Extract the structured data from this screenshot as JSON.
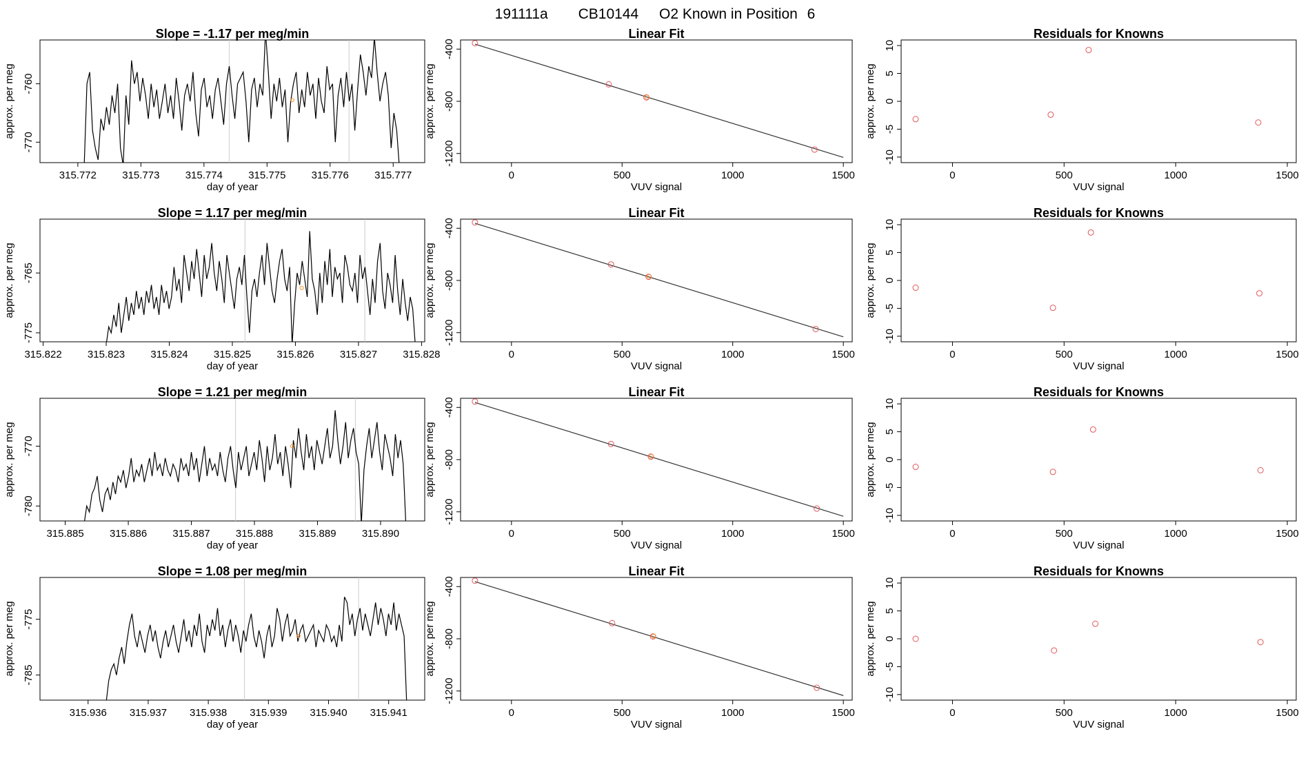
{
  "page_title": {
    "run_id": "191111a",
    "cylinder": "CB10144",
    "description": "O2 Known in Position",
    "position": "6"
  },
  "colors": {
    "line": "#000000",
    "fit_line": "#333333",
    "point": "#e15759",
    "highlight": "#f28e2b",
    "marker_line": "#cccccc"
  },
  "chart_data": [
    {
      "type": "line",
      "row": 1,
      "panel": "timeseries",
      "title": "Slope =  -1.17  per meg/min",
      "xlabel": "day of year",
      "ylabel": "approx. per meg",
      "xlim": [
        315.7714,
        315.7775
      ],
      "ylim": [
        -773.5,
        -752.5
      ],
      "x_ticks": [
        "315.772",
        "315.773",
        "315.774",
        "315.775",
        "315.776",
        "315.777"
      ],
      "x_tick_values": [
        315.772,
        315.773,
        315.774,
        315.775,
        315.776,
        315.777
      ],
      "y_ticks": [
        "-770",
        "-760"
      ],
      "y_tick_values": [
        -770,
        -760
      ],
      "vlines": [
        315.7744,
        315.7763
      ],
      "highlight_point": {
        "x": 315.7754,
        "y": -762.8
      },
      "x_start": 315.7721,
      "x_end": 315.7771,
      "values": [
        -774.5,
        -760,
        -758,
        -768,
        -771,
        -773,
        -766,
        -768,
        -764,
        -767,
        -762,
        -765,
        -760,
        -771,
        -774,
        -762,
        -767,
        -756,
        -760,
        -758,
        -763,
        -759,
        -762,
        -766,
        -760,
        -764,
        -761,
        -766,
        -763,
        -760,
        -765,
        -762,
        -766,
        -759,
        -763,
        -768,
        -762,
        -760,
        -763,
        -758,
        -765,
        -769,
        -761,
        -759,
        -764,
        -762,
        -766,
        -761,
        -759,
        -763,
        -767,
        -760,
        -757,
        -762,
        -766,
        -760,
        -759,
        -758,
        -763,
        -770,
        -761,
        -759,
        -764,
        -760,
        -762,
        -751,
        -758,
        -766,
        -760,
        -763,
        -759,
        -764,
        -761,
        -770,
        -763,
        -760,
        -758,
        -765,
        -761,
        -764,
        -758,
        -762,
        -760,
        -766,
        -759,
        -763,
        -765,
        -757,
        -761,
        -760,
        -770,
        -762,
        -759,
        -764,
        -758,
        -763,
        -760,
        -768,
        -761,
        -755,
        -758,
        -762,
        -757,
        -759,
        -752,
        -758,
        -763,
        -760,
        -758,
        -762,
        -771,
        -765,
        -768,
        -774.5
      ]
    },
    {
      "type": "scatter",
      "row": 1,
      "panel": "fit",
      "title": "Linear Fit",
      "xlabel": "VUV signal",
      "ylabel": "approx. per meg",
      "xlim": [
        -230,
        1540
      ],
      "ylim": [
        -1270,
        -330
      ],
      "x_ticks": [
        "0",
        "500",
        "1000",
        "1500"
      ],
      "x_tick_values": [
        0,
        500,
        1000,
        1500
      ],
      "y_ticks": [
        "-1200",
        "-800",
        "-400"
      ],
      "y_tick_values": [
        -1200,
        -800,
        -400
      ],
      "points": [
        [
          -165,
          -355
        ],
        [
          440,
          -670
        ],
        [
          610,
          -770
        ],
        [
          1370,
          -1170
        ]
      ],
      "highlight_point": [
        612,
        -768
      ],
      "fit_line": [
        [
          -165,
          -362
        ],
        [
          1500,
          -1230
        ]
      ]
    },
    {
      "type": "scatter",
      "row": 1,
      "panel": "residuals",
      "title": "Residuals for Knowns",
      "xlabel": "VUV signal",
      "ylabel": "approx. per meg",
      "xlim": [
        -230,
        1540
      ],
      "ylim": [
        -11,
        11
      ],
      "x_ticks": [
        "0",
        "500",
        "1000",
        "1500"
      ],
      "x_tick_values": [
        0,
        500,
        1000,
        1500
      ],
      "y_ticks": [
        "-10",
        "-5",
        "0",
        "5",
        "10"
      ],
      "y_tick_values": [
        -10,
        -5,
        0,
        5,
        10
      ],
      "points": [
        [
          -165,
          -3.2
        ],
        [
          440,
          -2.4
        ],
        [
          610,
          9.2
        ],
        [
          1370,
          -3.8
        ]
      ]
    },
    {
      "type": "line",
      "row": 2,
      "panel": "timeseries",
      "title": "Slope =  1.17  per meg/min",
      "xlabel": "day of year",
      "ylabel": "approx. per meg",
      "xlim": [
        315.82195,
        315.82805
      ],
      "ylim": [
        -776.5,
        -756
      ],
      "x_ticks": [
        "315.822",
        "315.823",
        "315.824",
        "315.825",
        "315.826",
        "315.827",
        "315.828"
      ],
      "x_tick_values": [
        315.822,
        315.823,
        315.824,
        315.825,
        315.826,
        315.827,
        315.828
      ],
      "y_ticks": [
        "-775",
        "-765"
      ],
      "y_tick_values": [
        -775,
        -765
      ],
      "vlines": [
        315.8252,
        315.8271
      ],
      "highlight_point": {
        "x": 315.8261,
        "y": -767.5
      },
      "x_start": 315.823,
      "x_end": 315.8279,
      "values": [
        -777,
        -774,
        -775,
        -772,
        -774,
        -770,
        -775,
        -772,
        -769,
        -773,
        -770,
        -772,
        -768,
        -771,
        -769,
        -772,
        -768,
        -770,
        -767,
        -771,
        -769,
        -772,
        -767,
        -770,
        -768,
        -771,
        -769,
        -764,
        -768,
        -766,
        -770,
        -762,
        -765,
        -768,
        -763,
        -766,
        -761,
        -765,
        -769,
        -762,
        -766,
        -764,
        -760,
        -765,
        -768,
        -763,
        -766,
        -770,
        -762,
        -765,
        -768,
        -771,
        -766,
        -764,
        -767,
        -762,
        -769,
        -775,
        -768,
        -766,
        -769,
        -765,
        -762,
        -767,
        -760,
        -764,
        -768,
        -770,
        -766,
        -763,
        -761,
        -766,
        -768,
        -764,
        -777,
        -770,
        -765,
        -767,
        -763,
        -766,
        -769,
        -758,
        -766,
        -768,
        -772,
        -765,
        -770,
        -763,
        -767,
        -761,
        -769,
        -764,
        -766,
        -765,
        -770,
        -762,
        -764,
        -767,
        -768,
        -765,
        -770,
        -762,
        -766,
        -764,
        -768,
        -772,
        -766,
        -770,
        -763,
        -760,
        -768,
        -771,
        -765,
        -767,
        -770,
        -762,
        -768,
        -772,
        -766,
        -770,
        -773,
        -769,
        -771,
        -777
      ]
    },
    {
      "type": "scatter",
      "row": 2,
      "panel": "fit",
      "title": "Linear Fit",
      "xlabel": "VUV signal",
      "ylabel": "approx. per meg",
      "xlim": [
        -230,
        1540
      ],
      "ylim": [
        -1270,
        -330
      ],
      "x_ticks": [
        "0",
        "500",
        "1000",
        "1500"
      ],
      "x_tick_values": [
        0,
        500,
        1000,
        1500
      ],
      "y_ticks": [
        "-1200",
        "-800",
        "-400"
      ],
      "y_tick_values": [
        -1200,
        -800,
        -400
      ],
      "points": [
        [
          -165,
          -355
        ],
        [
          450,
          -677
        ],
        [
          620,
          -772
        ],
        [
          1375,
          -1172
        ]
      ],
      "highlight_point": [
        622,
        -770
      ],
      "fit_line": [
        [
          -165,
          -362
        ],
        [
          1500,
          -1232
        ]
      ]
    },
    {
      "type": "scatter",
      "row": 2,
      "panel": "residuals",
      "title": "Residuals for Knowns",
      "xlabel": "VUV signal",
      "ylabel": "approx. per meg",
      "xlim": [
        -230,
        1540
      ],
      "ylim": [
        -11,
        11
      ],
      "x_ticks": [
        "0",
        "500",
        "1000",
        "1500"
      ],
      "x_tick_values": [
        0,
        500,
        1000,
        1500
      ],
      "y_ticks": [
        "-10",
        "-5",
        "0",
        "5",
        "10"
      ],
      "y_tick_values": [
        -10,
        -5,
        0,
        5,
        10
      ],
      "points": [
        [
          -165,
          -1.3
        ],
        [
          450,
          -4.9
        ],
        [
          620,
          8.6
        ],
        [
          1375,
          -2.3
        ]
      ]
    },
    {
      "type": "line",
      "row": 3,
      "panel": "timeseries",
      "title": "Slope =  1.21  per meg/min",
      "xlabel": "day of year",
      "ylabel": "approx. per meg",
      "xlim": [
        315.8846,
        315.8907
      ],
      "ylim": [
        -782.5,
        -762
      ],
      "x_ticks": [
        "315.885",
        "315.886",
        "315.887",
        "315.888",
        "315.889",
        "315.890"
      ],
      "x_tick_values": [
        315.885,
        315.886,
        315.887,
        315.888,
        315.889,
        315.89
      ],
      "y_ticks": [
        "-780",
        "-770"
      ],
      "y_tick_values": [
        -780,
        -770
      ],
      "vlines": [
        315.8877,
        315.8896
      ],
      "highlight_point": {
        "x": 315.8886,
        "y": -770
      },
      "x_start": 315.8853,
      "x_end": 315.8904,
      "values": [
        -783,
        -780,
        -781,
        -778,
        -777,
        -775,
        -779,
        -781,
        -778,
        -777,
        -779,
        -776,
        -778,
        -775,
        -776,
        -774,
        -777,
        -775,
        -772,
        -776,
        -774,
        -775,
        -773,
        -776,
        -774,
        -772,
        -775,
        -771,
        -774,
        -773,
        -775,
        -772,
        -774,
        -775,
        -773,
        -774,
        -776,
        -772,
        -774,
        -773,
        -775,
        -771,
        -774,
        -772,
        -776,
        -773,
        -770,
        -775,
        -772,
        -774,
        -773,
        -775,
        -771,
        -774,
        -776,
        -772,
        -770,
        -774,
        -777,
        -771,
        -774,
        -772,
        -770,
        -775,
        -773,
        -771,
        -774,
        -769,
        -772,
        -776,
        -770,
        -774,
        -772,
        -768,
        -773,
        -771,
        -775,
        -770,
        -773,
        -777,
        -769,
        -772,
        -767,
        -771,
        -774,
        -768,
        -772,
        -770,
        -774,
        -769,
        -771,
        -773,
        -770,
        -767,
        -772,
        -770,
        -764,
        -769,
        -773,
        -770,
        -766,
        -772,
        -769,
        -767,
        -771,
        -773,
        -783,
        -774,
        -770,
        -767,
        -772,
        -769,
        -766,
        -771,
        -774,
        -768,
        -770,
        -772,
        -775,
        -768,
        -772,
        -769,
        -773,
        -783
      ]
    },
    {
      "type": "scatter",
      "row": 3,
      "panel": "fit",
      "title": "Linear Fit",
      "xlabel": "VUV signal",
      "ylabel": "approx. per meg",
      "xlim": [
        -230,
        1540
      ],
      "ylim": [
        -1270,
        -330
      ],
      "x_ticks": [
        "0",
        "500",
        "1000",
        "1500"
      ],
      "x_tick_values": [
        0,
        500,
        1000,
        1500
      ],
      "y_ticks": [
        "-1200",
        "-800",
        "-400"
      ],
      "y_tick_values": [
        -1200,
        -800,
        -400
      ],
      "points": [
        [
          -165,
          -355
        ],
        [
          450,
          -680
        ],
        [
          630,
          -777
        ],
        [
          1380,
          -1175
        ]
      ],
      "highlight_point": [
        632,
        -775
      ],
      "fit_line": [
        [
          -165,
          -362
        ],
        [
          1500,
          -1234
        ]
      ]
    },
    {
      "type": "scatter",
      "row": 3,
      "panel": "residuals",
      "title": "Residuals for Knowns",
      "xlabel": "VUV signal",
      "ylabel": "approx. per meg",
      "xlim": [
        -230,
        1540
      ],
      "ylim": [
        -11,
        11
      ],
      "x_ticks": [
        "0",
        "500",
        "1000",
        "1500"
      ],
      "x_tick_values": [
        0,
        500,
        1000,
        1500
      ],
      "y_ticks": [
        "-10",
        "-5",
        "0",
        "5",
        "10"
      ],
      "y_tick_values": [
        -10,
        -5,
        0,
        5,
        10
      ],
      "points": [
        [
          -165,
          -1.3
        ],
        [
          450,
          -2.2
        ],
        [
          630,
          5.4
        ],
        [
          1380,
          -1.9
        ]
      ]
    },
    {
      "type": "line",
      "row": 4,
      "panel": "timeseries",
      "title": "Slope =  1.08  per meg/min",
      "xlabel": "day of year",
      "ylabel": "approx. per meg",
      "xlim": [
        315.9352,
        315.9416
      ],
      "ylim": [
        -789.5,
        -767.5
      ],
      "x_ticks": [
        "315.936",
        "315.937",
        "315.938",
        "315.939",
        "315.940",
        "315.941"
      ],
      "x_tick_values": [
        315.936,
        315.937,
        315.938,
        315.939,
        315.94,
        315.941
      ],
      "y_ticks": [
        "-785",
        "-775"
      ],
      "y_tick_values": [
        -785,
        -775
      ],
      "vlines": [
        315.9386,
        315.9405
      ],
      "highlight_point": {
        "x": 315.9395,
        "y": -778
      },
      "x_start": 315.9363,
      "x_end": 315.9413,
      "values": [
        -790,
        -786,
        -784,
        -783,
        -785,
        -782,
        -780,
        -783,
        -779,
        -776,
        -774,
        -778,
        -780,
        -777,
        -779,
        -781,
        -778,
        -776,
        -779,
        -777,
        -780,
        -782,
        -779,
        -777,
        -780,
        -778,
        -776,
        -779,
        -781,
        -778,
        -775,
        -779,
        -777,
        -780,
        -776,
        -778,
        -774,
        -779,
        -781,
        -776,
        -778,
        -775,
        -777,
        -773,
        -778,
        -776,
        -780,
        -777,
        -775,
        -779,
        -776,
        -778,
        -781,
        -777,
        -779,
        -776,
        -774,
        -778,
        -780,
        -777,
        -779,
        -782,
        -778,
        -776,
        -780,
        -778,
        -773,
        -775,
        -779,
        -776,
        -774,
        -778,
        -777,
        -775,
        -779,
        -777,
        -776,
        -779,
        -778,
        -777,
        -776,
        -780,
        -777,
        -778,
        -779,
        -776,
        -777,
        -779,
        -778,
        -780,
        -776,
        -779,
        -771,
        -772,
        -776,
        -774,
        -778,
        -775,
        -773,
        -777,
        -774,
        -776,
        -778,
        -775,
        -772,
        -776,
        -773,
        -775,
        -778,
        -774,
        -776,
        -772,
        -777,
        -774,
        -776,
        -778,
        -790
      ]
    },
    {
      "type": "scatter",
      "row": 4,
      "panel": "fit",
      "title": "Linear Fit",
      "xlabel": "VUV signal",
      "ylabel": "approx. per meg",
      "xlim": [
        -230,
        1540
      ],
      "ylim": [
        -1270,
        -330
      ],
      "x_ticks": [
        "0",
        "500",
        "1000",
        "1500"
      ],
      "x_tick_values": [
        0,
        500,
        1000,
        1500
      ],
      "y_ticks": [
        "-1200",
        "-800",
        "-400"
      ],
      "y_tick_values": [
        -1200,
        -800,
        -400
      ],
      "points": [
        [
          -165,
          -355
        ],
        [
          455,
          -680
        ],
        [
          640,
          -782
        ],
        [
          1380,
          -1175
        ]
      ],
      "highlight_point": [
        642,
        -780
      ],
      "fit_line": [
        [
          -165,
          -362
        ],
        [
          1500,
          -1235
        ]
      ]
    },
    {
      "type": "scatter",
      "row": 4,
      "panel": "residuals",
      "title": "Residuals for Knowns",
      "xlabel": "VUV signal",
      "ylabel": "approx. per meg",
      "xlim": [
        -230,
        1540
      ],
      "ylim": [
        -11,
        11
      ],
      "x_ticks": [
        "0",
        "500",
        "1000",
        "1500"
      ],
      "x_tick_values": [
        0,
        500,
        1000,
        1500
      ],
      "y_ticks": [
        "-10",
        "-5",
        "0",
        "5",
        "10"
      ],
      "y_tick_values": [
        -10,
        -5,
        0,
        5,
        10
      ],
      "points": [
        [
          -165,
          0.0
        ],
        [
          455,
          -2.1
        ],
        [
          640,
          2.7
        ],
        [
          1380,
          -0.6
        ]
      ]
    }
  ]
}
